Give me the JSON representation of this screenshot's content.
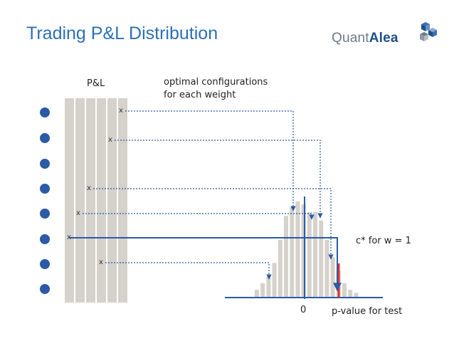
{
  "title": "Trading P&L Distribution",
  "logo": {
    "part_a": "Quant",
    "part_b": "Alea"
  },
  "labels": {
    "pl": "P&L",
    "optimal_line1": "optimal configurations",
    "optimal_line2": "for each weight",
    "cstar": "c* for w = 1",
    "zero": "0",
    "pvalue": "p-value for test"
  },
  "markers": [
    "x",
    "x",
    "x",
    "x",
    "x",
    "x"
  ],
  "colors": {
    "title": "#2e6fb6",
    "dots": "#2b5aa8",
    "columns": "#d5d1cb",
    "bars": "#d5d1cb",
    "line": "#2b5aa8",
    "pvalue_marker": "#e0302a"
  },
  "histogram_relative_heights": [
    0.08,
    0.15,
    0.22,
    0.36,
    0.6,
    0.85,
    0.94,
    1.0,
    0.97,
    0.89,
    0.89,
    0.8,
    0.6,
    0.42,
    0.28,
    0.15,
    0.08,
    0.05
  ]
}
